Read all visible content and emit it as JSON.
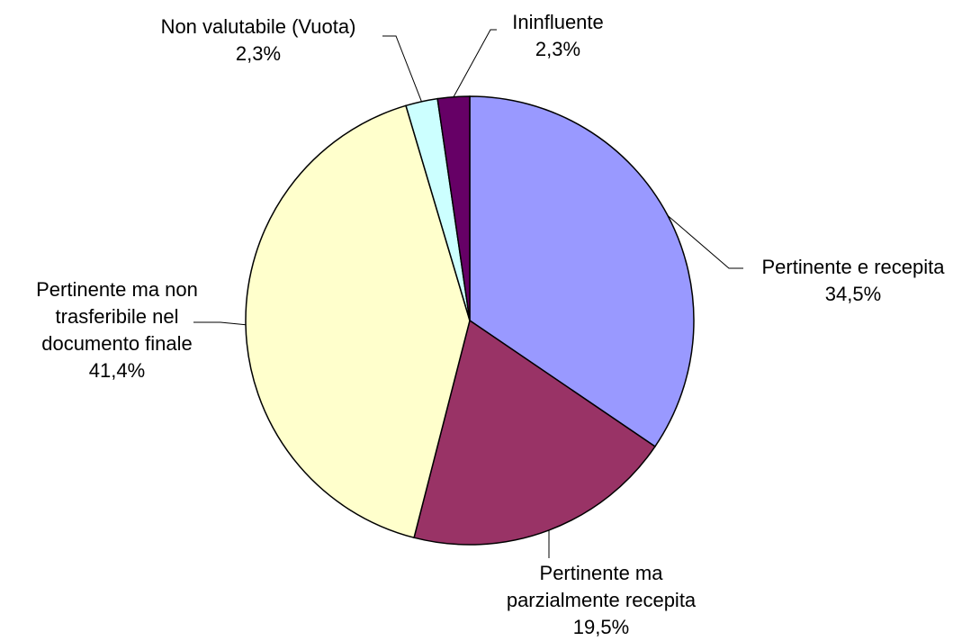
{
  "chart_data": {
    "type": "pie",
    "categories": [
      "Pertinente e recepita",
      "Pertinente ma parzialmente recepita",
      "Pertinente ma non trasferibile nel documento finale",
      "Non valutabile (Vuota)",
      "Ininfluente"
    ],
    "values": [
      34.5,
      19.5,
      41.4,
      2.3,
      2.3
    ],
    "value_labels": [
      "34,5%",
      "19,5%",
      "41,4%",
      "2,3%",
      "2,3%"
    ],
    "colors": [
      "#9999ff",
      "#993366",
      "#ffffcc",
      "#ccffff",
      "#660066"
    ]
  }
}
